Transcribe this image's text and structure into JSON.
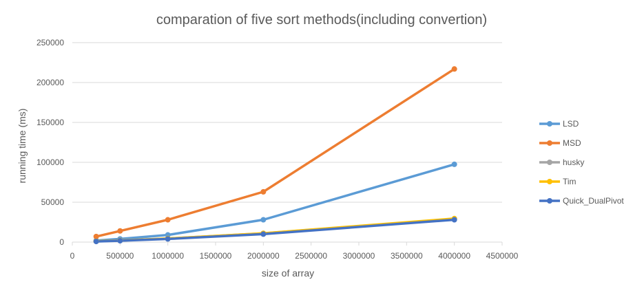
{
  "chart_data": {
    "type": "line",
    "title": "comparation of five sort methods(including convertion)",
    "xlabel": "size of array",
    "ylabel": "running time (ms)",
    "xlim": [
      0,
      4500000
    ],
    "ylim": [
      0,
      250000
    ],
    "x_ticks": [
      "0",
      "500000",
      "1000000",
      "1500000",
      "2000000",
      "2500000",
      "3000000",
      "3500000",
      "4000000",
      "4500000"
    ],
    "y_ticks": [
      "0",
      "50000",
      "100000",
      "150000",
      "200000",
      "250000"
    ],
    "grid": true,
    "legend_position": "right",
    "x": [
      250000,
      500000,
      1000000,
      2000000,
      4000000
    ],
    "series": [
      {
        "name": "LSD",
        "color": "#5B9BD5",
        "values": [
          2000,
          4000,
          9000,
          28000,
          97500
        ]
      },
      {
        "name": "MSD",
        "color": "#ED7D31",
        "values": [
          7000,
          14000,
          28000,
          63000,
          217000
        ]
      },
      {
        "name": "husky",
        "color": "#A5A5A5",
        "values": [
          1000,
          2000,
          4500,
          11000,
          29000
        ]
      },
      {
        "name": "Tim",
        "color": "#FFC000",
        "values": [
          1000,
          2000,
          4500,
          11000,
          29500
        ]
      },
      {
        "name": "Quick_DualPivot",
        "color": "#4472C4",
        "values": [
          800,
          1700,
          4000,
          10000,
          28000
        ]
      }
    ]
  }
}
